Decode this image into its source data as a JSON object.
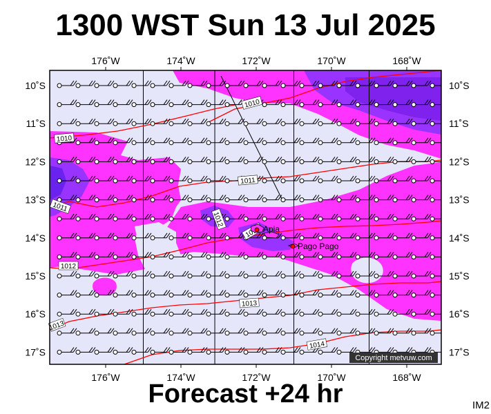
{
  "title": "1300 WST Sun 13 Jul 2025",
  "subtitle": "Forecast +24 hr",
  "image_code": "IM2",
  "copyright": "Copyright metvuw.com",
  "colors": {
    "background": "#e6e6fa",
    "precip_light": "#ff33ff",
    "precip_heavy": "#9933ff",
    "precip_mid": "#cc33ff",
    "isobar": "#ff0000",
    "grid": "#000000"
  },
  "map": {
    "lon_labels": [
      "176˚W",
      "174˚W",
      "172˚W",
      "170˚W",
      "168˚W"
    ],
    "lon_values": [
      -176,
      -174,
      -172,
      -170,
      -168
    ],
    "lat_labels": [
      "10˚S",
      "11˚S",
      "12˚S",
      "13˚S",
      "14˚S",
      "15˚S",
      "16˚S",
      "17˚S"
    ],
    "lat_values": [
      -10,
      -11,
      -12,
      -13,
      -14,
      -15,
      -16,
      -17
    ],
    "isobars": [
      {
        "label": "1010",
        "pressure": 1010
      },
      {
        "label": "1010",
        "pressure": 1010
      },
      {
        "label": "1011",
        "pressure": 1011
      },
      {
        "label": "1011",
        "pressure": 1011
      },
      {
        "label": "1012",
        "pressure": 1012
      },
      {
        "label": "1012",
        "pressure": 1012
      },
      {
        "label": "1012",
        "pressure": 1012
      },
      {
        "label": "1013",
        "pressure": 1013
      },
      {
        "label": "1013",
        "pressure": 1013
      },
      {
        "label": "1014",
        "pressure": 1014
      }
    ],
    "places": [
      {
        "name": "Apia"
      },
      {
        "name": "Pago Pago"
      }
    ]
  }
}
